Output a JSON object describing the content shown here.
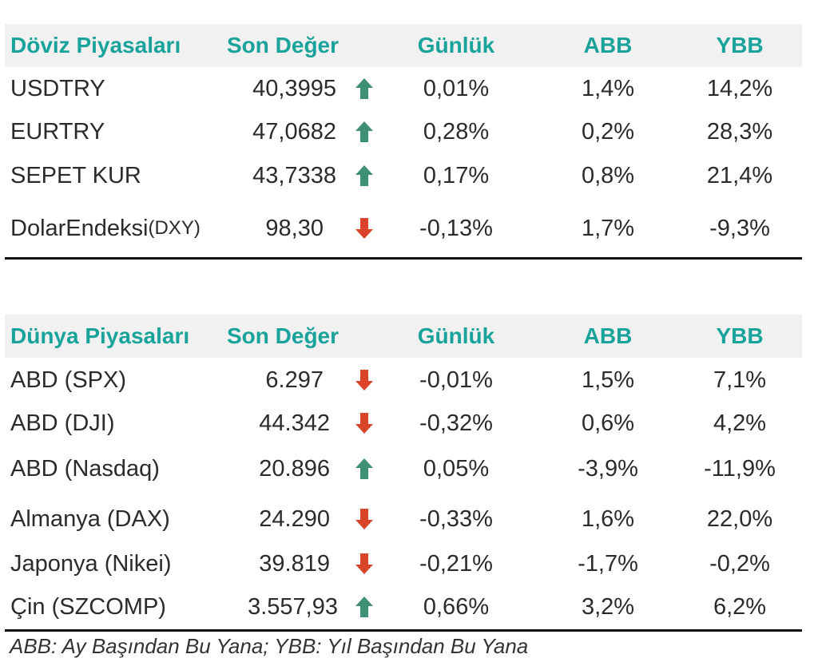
{
  "colors": {
    "header_text": "#1aa39b",
    "header_bg": "#f1f1f1",
    "up": "#3e8f75",
    "down": "#d9442b",
    "rule": "#111111"
  },
  "fx": {
    "header": {
      "title": "Döviz Piyasaları",
      "value": "Son Değer",
      "daily": "Günlük",
      "abb": "ABB",
      "ybb": "YBB"
    },
    "rows": [
      {
        "name": "USDTRY",
        "name_suffix": "",
        "value": "40,3995",
        "direction": "up",
        "daily": "0,01%",
        "abb": "1,4%",
        "ybb": "14,2%"
      },
      {
        "name": "EURTRY",
        "name_suffix": "",
        "value": "47,0682",
        "direction": "up",
        "daily": "0,28%",
        "abb": "0,2%",
        "ybb": "28,3%"
      },
      {
        "name": "SEPET KUR",
        "name_suffix": "",
        "value": "43,7338",
        "direction": "up",
        "daily": "0,17%",
        "abb": "0,8%",
        "ybb": "21,4%"
      },
      {
        "name": "DolarEndeksi",
        "name_suffix": "(DXY)",
        "value": "98,30",
        "direction": "down",
        "daily": "-0,13%",
        "abb": "1,7%",
        "ybb": "-9,3%"
      }
    ]
  },
  "world": {
    "header": {
      "title": "Dünya Piyasaları",
      "value": "Son Değer",
      "daily": "Günlük",
      "abb": "ABB",
      "ybb": "YBB"
    },
    "rows": [
      {
        "name": "ABD (SPX)",
        "value": "6.297",
        "direction": "down",
        "daily": "-0,01%",
        "abb": "1,5%",
        "ybb": "7,1%"
      },
      {
        "name": "ABD (DJI)",
        "value": "44.342",
        "direction": "down",
        "daily": "-0,32%",
        "abb": "0,6%",
        "ybb": "4,2%"
      },
      {
        "name": "ABD (Nasdaq)",
        "value": "20.896",
        "direction": "up",
        "daily": "0,05%",
        "abb": "-3,9%",
        "ybb": "-11,9%"
      },
      {
        "name": "Almanya (DAX)",
        "value": "24.290",
        "direction": "down",
        "daily": "-0,33%",
        "abb": "1,6%",
        "ybb": "22,0%"
      },
      {
        "name": "Japonya (Nikei)",
        "value": "39.819",
        "direction": "down",
        "daily": "-0,21%",
        "abb": "-1,7%",
        "ybb": "-0,2%"
      },
      {
        "name": "Çin (SZCOMP)",
        "value": "3.557,93",
        "direction": "up",
        "daily": "0,66%",
        "abb": "3,2%",
        "ybb": "6,2%"
      }
    ]
  },
  "footnote": "ABB: Ay Başından Bu Yana; YBB: Yıl Başından Bu Yana"
}
